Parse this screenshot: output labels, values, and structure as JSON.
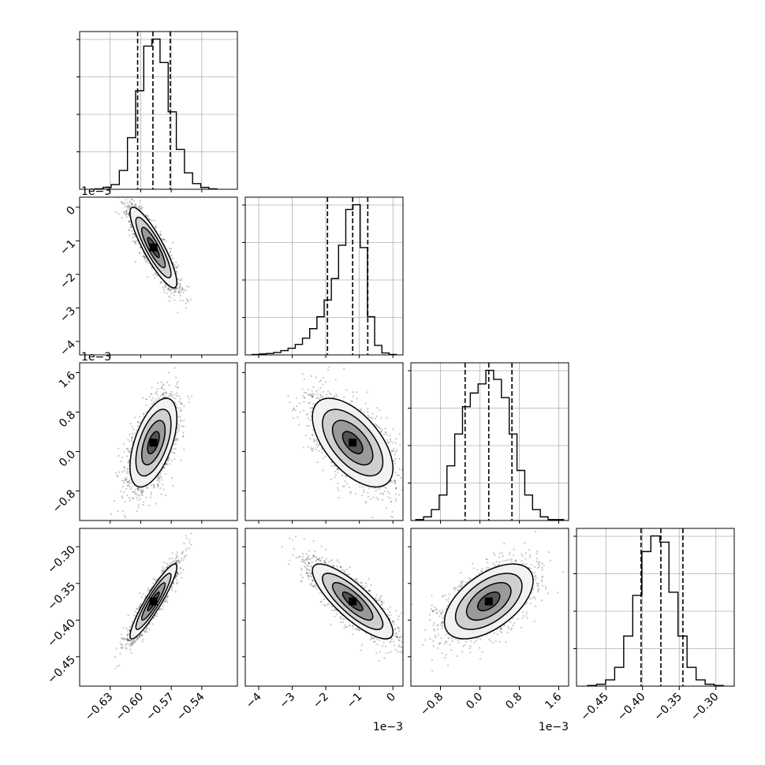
{
  "chart_data": {
    "type": "corner",
    "params": [
      {
        "range": [
          -0.66,
          -0.505
        ],
        "ticks": [
          "-0.63",
          "-0.60",
          "-0.57",
          "-0.54"
        ],
        "tick_values": [
          -0.63,
          -0.6,
          -0.57,
          -0.54
        ],
        "offset": "",
        "quantiles": [
          -0.603,
          -0.588,
          -0.571
        ],
        "center": -0.5875,
        "sd": 0.0115
      },
      {
        "range": [
          -4.4,
          0.3
        ],
        "ticks": [
          "-4",
          "-3",
          "-2",
          "-1",
          "0"
        ],
        "tick_values": [
          -4,
          -3,
          -2,
          -1,
          0
        ],
        "offset": "1e−3",
        "quantiles": [
          -1.95,
          -1.2,
          -0.75
        ],
        "center": -1.2,
        "sd": 0.6
      },
      {
        "range": [
          -1.4,
          1.8
        ],
        "ticks": [
          "-0.8",
          "0.0",
          "0.8",
          "1.6"
        ],
        "tick_values": [
          -0.8,
          0.0,
          0.8,
          1.6
        ],
        "offset": "1e−3",
        "quantiles": [
          -0.3,
          0.18,
          0.65
        ],
        "center": 0.18,
        "sd": 0.45
      },
      {
        "range": [
          -0.49,
          -0.275
        ],
        "ticks": [
          "-0.45",
          "-0.40",
          "-0.35",
          "-0.30"
        ],
        "tick_values": [
          -0.45,
          -0.4,
          -0.35,
          -0.3
        ],
        "offset": "",
        "quantiles": [
          -0.402,
          -0.375,
          -0.345
        ],
        "center": -0.3745,
        "sd": 0.0255
      }
    ],
    "histograms": [
      {
        "param": 0,
        "edges_range": [
          -0.645,
          -0.525
        ],
        "counts": [
          1,
          4,
          10,
          40,
          110,
          210,
          305,
          320,
          270,
          165,
          85,
          35,
          12,
          4,
          1
        ]
      },
      {
        "param": 1,
        "edges_range": [
          -4.2,
          0.1
        ],
        "counts": [
          1,
          2,
          3,
          5,
          9,
          14,
          22,
          35,
          55,
          80,
          115,
          160,
          230,
          305,
          315,
          225,
          80,
          20,
          4,
          1
        ]
      },
      {
        "param": 2,
        "edges_range": [
          -1.3,
          1.7
        ],
        "counts": [
          1,
          4,
          12,
          28,
          60,
          95,
          125,
          140,
          150,
          165,
          155,
          135,
          95,
          55,
          28,
          12,
          4,
          1,
          1
        ]
      },
      {
        "param": 3,
        "edges_range": [
          -0.475,
          -0.29
        ],
        "counts": [
          1,
          3,
          10,
          30,
          80,
          145,
          215,
          240,
          230,
          150,
          80,
          30,
          10,
          3,
          1
        ]
      }
    ],
    "correlations": [
      [
        1,
        -0.87,
        0.55,
        0.92
      ],
      [
        -0.87,
        1,
        -0.58,
        -0.82
      ],
      [
        0.55,
        -0.58,
        1,
        0.55
      ],
      [
        0.92,
        -0.82,
        0.55,
        1
      ]
    ],
    "quantile_levels": [
      0.16,
      0.5,
      0.84
    ],
    "contour_levels": [
      0.5,
      1.0,
      1.5,
      2.0
    ],
    "grid": true
  }
}
